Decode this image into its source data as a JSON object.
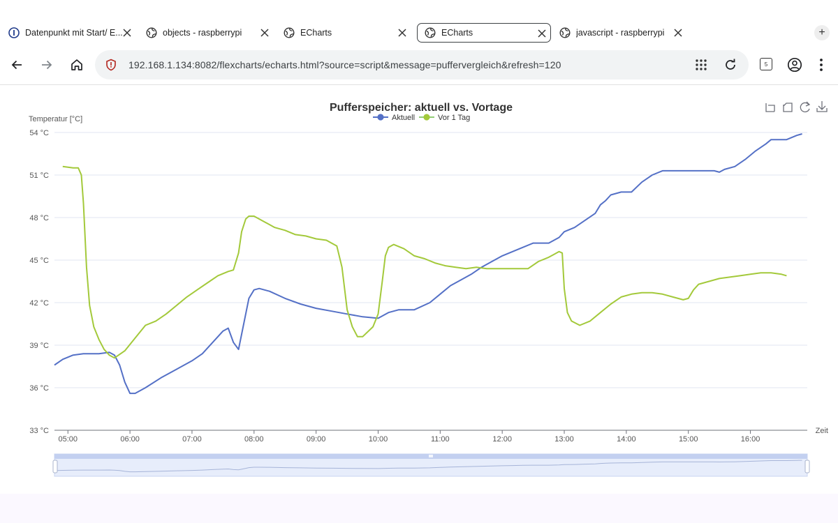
{
  "browser": {
    "tabs": [
      {
        "title": "Datenpunkt mit Start/ E...",
        "icon": "info-icon",
        "active": false
      },
      {
        "title": "objects - raspberrypi",
        "icon": "globe-icon",
        "active": false
      },
      {
        "title": "ECharts",
        "icon": "globe-icon",
        "active": false
      },
      {
        "title": "ECharts",
        "icon": "globe-icon",
        "active": true
      },
      {
        "title": "javascript - raspberrypi",
        "icon": "globe-icon",
        "active": false
      }
    ],
    "new_tab_label": "+",
    "url": "192.168.1.134:8082/flexcharts/echarts.html?source=script&message=puffervergleich&refresh=120",
    "tab_count": "5"
  },
  "chart_data": {
    "type": "line",
    "title": "Pufferspeicher: aktuell vs. Vortage",
    "ylabel": "Temperatur [°C]",
    "xlabel": "Zeit",
    "ylim": [
      33,
      54
    ],
    "xlim": [
      "04:47",
      "16:55"
    ],
    "y_ticks": [
      "33 °C",
      "36 °C",
      "39 °C",
      "42 °C",
      "45 °C",
      "48 °C",
      "51 °C",
      "54 °C"
    ],
    "x_ticks": [
      "05:00",
      "06:00",
      "07:00",
      "08:00",
      "09:00",
      "10:00",
      "11:00",
      "12:00",
      "13:00",
      "14:00",
      "15:00",
      "16:00"
    ],
    "legend_position": "top-center",
    "grid": true,
    "series": [
      {
        "name": "Aktuell",
        "color": "#5470c6",
        "points": [
          [
            "04:47",
            37.6
          ],
          [
            "04:55",
            38.0
          ],
          [
            "05:05",
            38.3
          ],
          [
            "05:15",
            38.4
          ],
          [
            "05:30",
            38.4
          ],
          [
            "05:40",
            38.5
          ],
          [
            "05:45",
            38.3
          ],
          [
            "05:50",
            37.6
          ],
          [
            "05:55",
            36.4
          ],
          [
            "06:00",
            35.6
          ],
          [
            "06:05",
            35.6
          ],
          [
            "06:15",
            36.0
          ],
          [
            "06:30",
            36.7
          ],
          [
            "06:45",
            37.3
          ],
          [
            "07:00",
            37.9
          ],
          [
            "07:10",
            38.4
          ],
          [
            "07:20",
            39.2
          ],
          [
            "07:30",
            40.0
          ],
          [
            "07:35",
            40.2
          ],
          [
            "07:40",
            39.2
          ],
          [
            "07:45",
            38.7
          ],
          [
            "07:50",
            40.5
          ],
          [
            "07:55",
            42.3
          ],
          [
            "08:00",
            42.9
          ],
          [
            "08:05",
            43.0
          ],
          [
            "08:15",
            42.8
          ],
          [
            "08:30",
            42.3
          ],
          [
            "08:45",
            41.9
          ],
          [
            "09:00",
            41.6
          ],
          [
            "09:15",
            41.4
          ],
          [
            "09:30",
            41.2
          ],
          [
            "09:45",
            41.0
          ],
          [
            "10:00",
            40.9
          ],
          [
            "10:10",
            41.3
          ],
          [
            "10:20",
            41.5
          ],
          [
            "10:35",
            41.5
          ],
          [
            "10:50",
            42.0
          ],
          [
            "11:00",
            42.6
          ],
          [
            "11:10",
            43.2
          ],
          [
            "11:20",
            43.6
          ],
          [
            "11:30",
            44.0
          ],
          [
            "11:40",
            44.5
          ],
          [
            "11:50",
            44.9
          ],
          [
            "12:00",
            45.3
          ],
          [
            "12:10",
            45.6
          ],
          [
            "12:20",
            45.9
          ],
          [
            "12:30",
            46.2
          ],
          [
            "12:45",
            46.2
          ],
          [
            "12:55",
            46.6
          ],
          [
            "13:00",
            47.0
          ],
          [
            "13:10",
            47.3
          ],
          [
            "13:20",
            47.8
          ],
          [
            "13:30",
            48.3
          ],
          [
            "13:35",
            48.9
          ],
          [
            "13:40",
            49.2
          ],
          [
            "13:45",
            49.6
          ],
          [
            "13:55",
            49.8
          ],
          [
            "14:05",
            49.8
          ],
          [
            "14:15",
            50.5
          ],
          [
            "14:25",
            51.0
          ],
          [
            "14:35",
            51.3
          ],
          [
            "15:00",
            51.3
          ],
          [
            "15:25",
            51.3
          ],
          [
            "15:30",
            51.2
          ],
          [
            "15:35",
            51.4
          ],
          [
            "15:45",
            51.6
          ],
          [
            "15:55",
            52.1
          ],
          [
            "16:05",
            52.7
          ],
          [
            "16:15",
            53.2
          ],
          [
            "16:20",
            53.5
          ],
          [
            "16:35",
            53.5
          ],
          [
            "16:45",
            53.8
          ],
          [
            "16:50",
            53.9
          ]
        ]
      },
      {
        "name": "Vor 1 Tag",
        "color": "#91cc75",
        "points": [
          [
            "04:55",
            51.6
          ],
          [
            "05:05",
            51.5
          ],
          [
            "05:10",
            51.5
          ],
          [
            "05:13",
            51.0
          ],
          [
            "05:15",
            49.0
          ],
          [
            "05:18",
            44.5
          ],
          [
            "05:21",
            41.8
          ],
          [
            "05:25",
            40.3
          ],
          [
            "05:30",
            39.4
          ],
          [
            "05:35",
            38.7
          ],
          [
            "05:40",
            38.3
          ],
          [
            "05:45",
            38.1
          ],
          [
            "05:55",
            38.6
          ],
          [
            "06:05",
            39.5
          ],
          [
            "06:15",
            40.4
          ],
          [
            "06:25",
            40.7
          ],
          [
            "06:35",
            41.2
          ],
          [
            "06:45",
            41.8
          ],
          [
            "06:55",
            42.4
          ],
          [
            "07:05",
            42.9
          ],
          [
            "07:15",
            43.4
          ],
          [
            "07:25",
            43.9
          ],
          [
            "07:35",
            44.2
          ],
          [
            "07:40",
            44.3
          ],
          [
            "07:45",
            45.5
          ],
          [
            "07:48",
            47.0
          ],
          [
            "07:52",
            47.9
          ],
          [
            "07:55",
            48.1
          ],
          [
            "08:00",
            48.1
          ],
          [
            "08:10",
            47.7
          ],
          [
            "08:20",
            47.3
          ],
          [
            "08:30",
            47.1
          ],
          [
            "08:40",
            46.8
          ],
          [
            "08:50",
            46.7
          ],
          [
            "09:00",
            46.5
          ],
          [
            "09:10",
            46.4
          ],
          [
            "09:15",
            46.2
          ],
          [
            "09:20",
            46.0
          ],
          [
            "09:25",
            44.5
          ],
          [
            "09:30",
            41.5
          ],
          [
            "09:35",
            40.3
          ],
          [
            "09:40",
            39.6
          ],
          [
            "09:45",
            39.6
          ],
          [
            "09:55",
            40.3
          ],
          [
            "10:00",
            41.2
          ],
          [
            "10:04",
            43.5
          ],
          [
            "10:07",
            45.3
          ],
          [
            "10:10",
            45.9
          ],
          [
            "10:15",
            46.1
          ],
          [
            "10:25",
            45.8
          ],
          [
            "10:35",
            45.3
          ],
          [
            "10:45",
            45.1
          ],
          [
            "10:55",
            44.8
          ],
          [
            "11:05",
            44.6
          ],
          [
            "11:15",
            44.5
          ],
          [
            "11:25",
            44.4
          ],
          [
            "11:35",
            44.5
          ],
          [
            "11:45",
            44.4
          ],
          [
            "12:00",
            44.4
          ],
          [
            "12:15",
            44.4
          ],
          [
            "12:25",
            44.4
          ],
          [
            "12:35",
            44.9
          ],
          [
            "12:45",
            45.2
          ],
          [
            "12:50",
            45.4
          ],
          [
            "12:55",
            45.6
          ],
          [
            "12:58",
            45.5
          ],
          [
            "13:00",
            43.0
          ],
          [
            "13:03",
            41.3
          ],
          [
            "13:07",
            40.7
          ],
          [
            "13:15",
            40.4
          ],
          [
            "13:25",
            40.7
          ],
          [
            "13:35",
            41.3
          ],
          [
            "13:45",
            41.9
          ],
          [
            "13:55",
            42.4
          ],
          [
            "14:05",
            42.6
          ],
          [
            "14:15",
            42.7
          ],
          [
            "14:25",
            42.7
          ],
          [
            "14:35",
            42.6
          ],
          [
            "14:45",
            42.4
          ],
          [
            "14:55",
            42.2
          ],
          [
            "15:00",
            42.3
          ],
          [
            "15:05",
            42.9
          ],
          [
            "15:10",
            43.3
          ],
          [
            "15:20",
            43.5
          ],
          [
            "15:30",
            43.7
          ],
          [
            "15:40",
            43.8
          ],
          [
            "15:50",
            43.9
          ],
          [
            "16:00",
            44.0
          ],
          [
            "16:10",
            44.1
          ],
          [
            "16:20",
            44.1
          ],
          [
            "16:30",
            44.0
          ],
          [
            "16:35",
            43.9
          ]
        ]
      }
    ]
  }
}
